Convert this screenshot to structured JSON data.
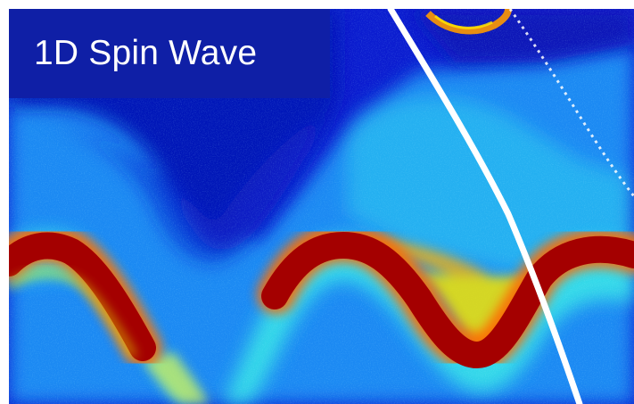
{
  "figure": {
    "title": "1D Spin Wave",
    "colormap": "jet",
    "colors": {
      "background": "#0a16c8",
      "low": "#0b1fd8",
      "mid_low": "#1aa0ff",
      "mid": "#2fe0f0",
      "mid_high": "#ffe600",
      "high": "#ff5a00",
      "max": "#a80000",
      "streak": "#ffffff",
      "title_panel": "#0f1fa6"
    }
  }
}
